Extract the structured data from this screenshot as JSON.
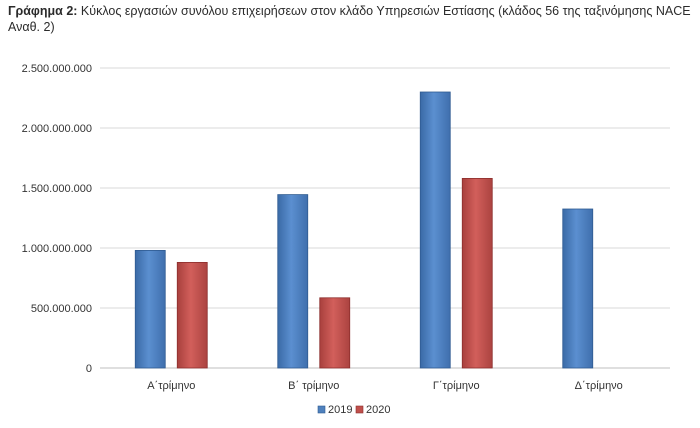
{
  "title": {
    "prefix": "Γράφημα 2:",
    "text": " Κύκλος εργασιών συνόλου επιχειρήσεων στον κλάδο Υπηρεσιών Εστίασης (κλάδος 56 της ταξινόμησης NACE Αναθ. 2)"
  },
  "colors": {
    "s2019": "#4f81bd",
    "s2019_dark": "#2f5b91",
    "s2020": "#c0504d",
    "s2020_dark": "#8c2e2c",
    "gridline": "#d9d9d9",
    "axis": "#bfbfbf"
  },
  "chart_data": {
    "type": "bar",
    "categories": [
      "Α΄τρίμηνο",
      "Β΄ τρίμηνο",
      "Γ΄τρίμηνο",
      "Δ΄τρίμηνο"
    ],
    "series": [
      {
        "name": "2019",
        "values": [
          980000000,
          1445000000,
          2300000000,
          1325000000
        ]
      },
      {
        "name": "2020",
        "values": [
          880000000,
          585000000,
          1580000000,
          null
        ]
      }
    ],
    "ylim": [
      0,
      2500000000
    ],
    "yticks": [
      0,
      500000000,
      1000000000,
      1500000000,
      2000000000,
      2500000000
    ],
    "ytick_labels": [
      "0",
      "500.000.000",
      "1.000.000.000",
      "1.500.000.000",
      "2.000.000.000",
      "2.500.000.000"
    ],
    "grid": true,
    "legend": "bottom"
  }
}
